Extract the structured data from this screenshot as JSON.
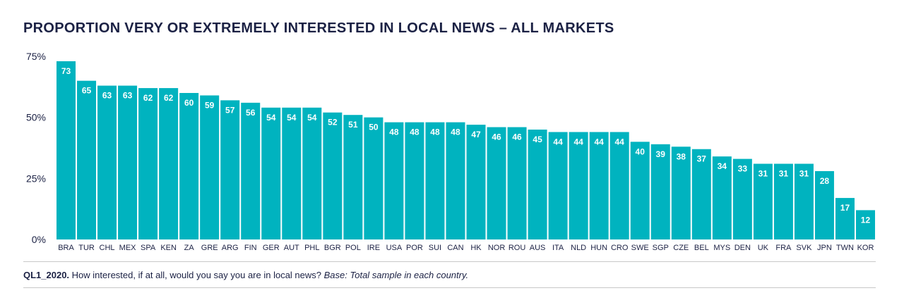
{
  "title": "PROPORTION VERY OR EXTREMELY INTERESTED IN LOCAL NEWS – ALL MARKETS",
  "footnote": {
    "question_id": "QL1_2020.",
    "question": " How interested, if at all, would you say you are in local news? ",
    "base": "Base: Total sample in each country."
  },
  "colors": {
    "bar": "#00b3bf",
    "text": "#1b2144",
    "bar_label": "#ffffff"
  },
  "chart_data": {
    "type": "bar",
    "title": "PROPORTION VERY OR EXTREMELY INTERESTED IN LOCAL NEWS – ALL MARKETS",
    "xlabel": "",
    "ylabel": "",
    "ylim": [
      0,
      75
    ],
    "yticks": [
      0,
      25,
      50,
      75
    ],
    "ytick_labels": [
      "0%",
      "25%",
      "50%",
      "75%"
    ],
    "grid": false,
    "categories": [
      "BRA",
      "TUR",
      "CHL",
      "MEX",
      "SPA",
      "KEN",
      "ZA",
      "GRE",
      "ARG",
      "FIN",
      "GER",
      "AUT",
      "PHL",
      "BGR",
      "POL",
      "IRE",
      "USA",
      "POR",
      "SUI",
      "CAN",
      "HK",
      "NOR",
      "ROU",
      "AUS",
      "ITA",
      "NLD",
      "HUN",
      "CRO",
      "SWE",
      "SGP",
      "CZE",
      "BEL",
      "MYS",
      "DEN",
      "UK",
      "FRA",
      "SVK",
      "JPN",
      "TWN",
      "KOR"
    ],
    "values": [
      73,
      65,
      63,
      63,
      62,
      62,
      60,
      59,
      57,
      56,
      54,
      54,
      54,
      52,
      51,
      50,
      48,
      48,
      48,
      48,
      47,
      46,
      46,
      45,
      44,
      44,
      44,
      44,
      40,
      39,
      38,
      37,
      34,
      33,
      31,
      31,
      31,
      28,
      17,
      12
    ]
  }
}
